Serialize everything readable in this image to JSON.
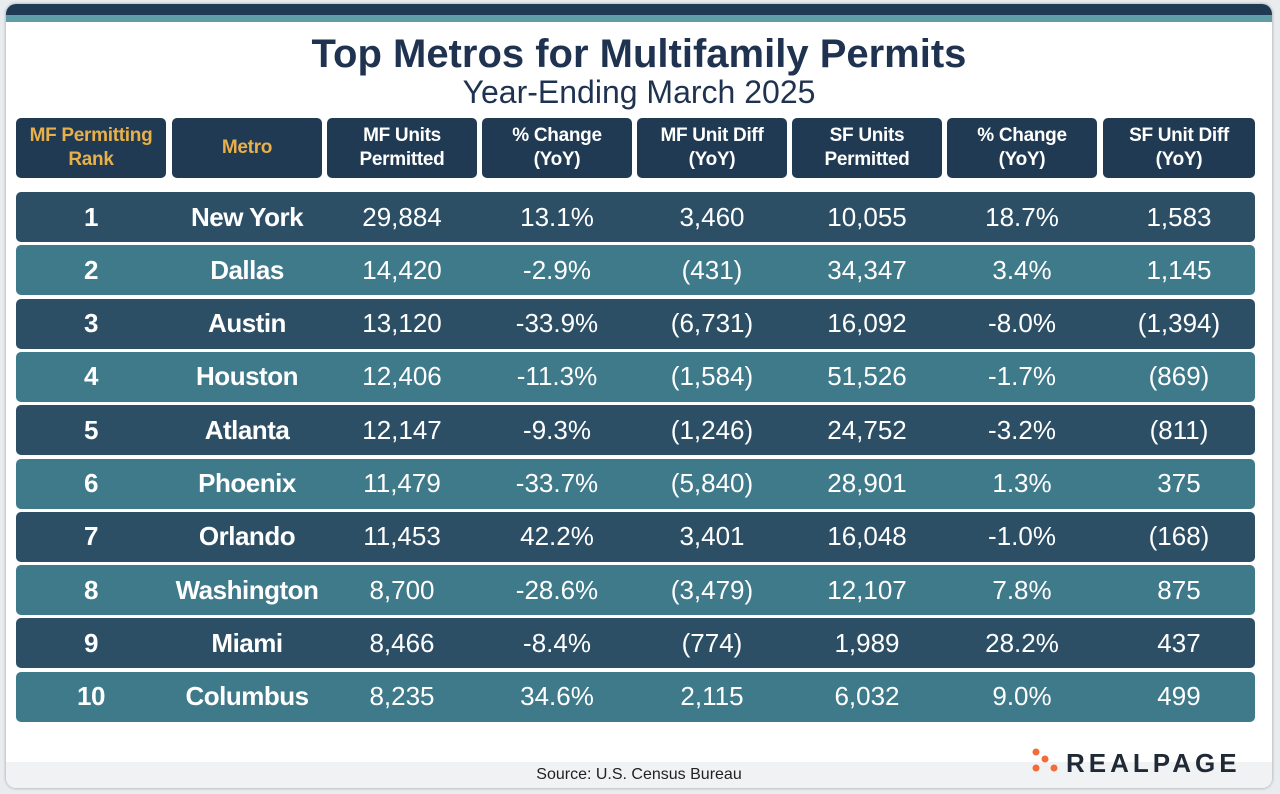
{
  "header": {
    "title": "Top Metros for Multifamily Permits",
    "subtitle": "Year-Ending March 2025"
  },
  "table": {
    "columns": [
      "MF Permitting Rank",
      "Metro",
      "MF Units Permitted",
      "% Change (YoY)",
      "MF Unit Diff (YoY)",
      "SF Units Permitted",
      "% Change (YoY)",
      "SF Unit Diff (YoY)"
    ],
    "rows": [
      [
        "1",
        "New York",
        "29,884",
        "13.1%",
        "3,460",
        "10,055",
        "18.7%",
        "1,583"
      ],
      [
        "2",
        "Dallas",
        "14,420",
        "-2.9%",
        "(431)",
        "34,347",
        "3.4%",
        "1,145"
      ],
      [
        "3",
        "Austin",
        "13,120",
        "-33.9%",
        "(6,731)",
        "16,092",
        "-8.0%",
        "(1,394)"
      ],
      [
        "4",
        "Houston",
        "12,406",
        "-11.3%",
        "(1,584)",
        "51,526",
        "-1.7%",
        "(869)"
      ],
      [
        "5",
        "Atlanta",
        "12,147",
        "-9.3%",
        "(1,246)",
        "24,752",
        "-3.2%",
        "(811)"
      ],
      [
        "6",
        "Phoenix",
        "11,479",
        "-33.7%",
        "(5,840)",
        "28,901",
        "1.3%",
        "375"
      ],
      [
        "7",
        "Orlando",
        "11,453",
        "42.2%",
        "3,401",
        "16,048",
        "-1.0%",
        "(168)"
      ],
      [
        "8",
        "Washington",
        "8,700",
        "-28.6%",
        "(3,479)",
        "12,107",
        "7.8%",
        "875"
      ],
      [
        "9",
        "Miami",
        "8,466",
        "-8.4%",
        "(774)",
        "1,989",
        "28.2%",
        "437"
      ],
      [
        "10",
        "Columbus",
        "8,235",
        "34.6%",
        "2,115",
        "6,032",
        "9.0%",
        "499"
      ]
    ]
  },
  "footer": {
    "source": "Source: U.S. Census Bureau",
    "logo": "REALPAGE"
  }
}
